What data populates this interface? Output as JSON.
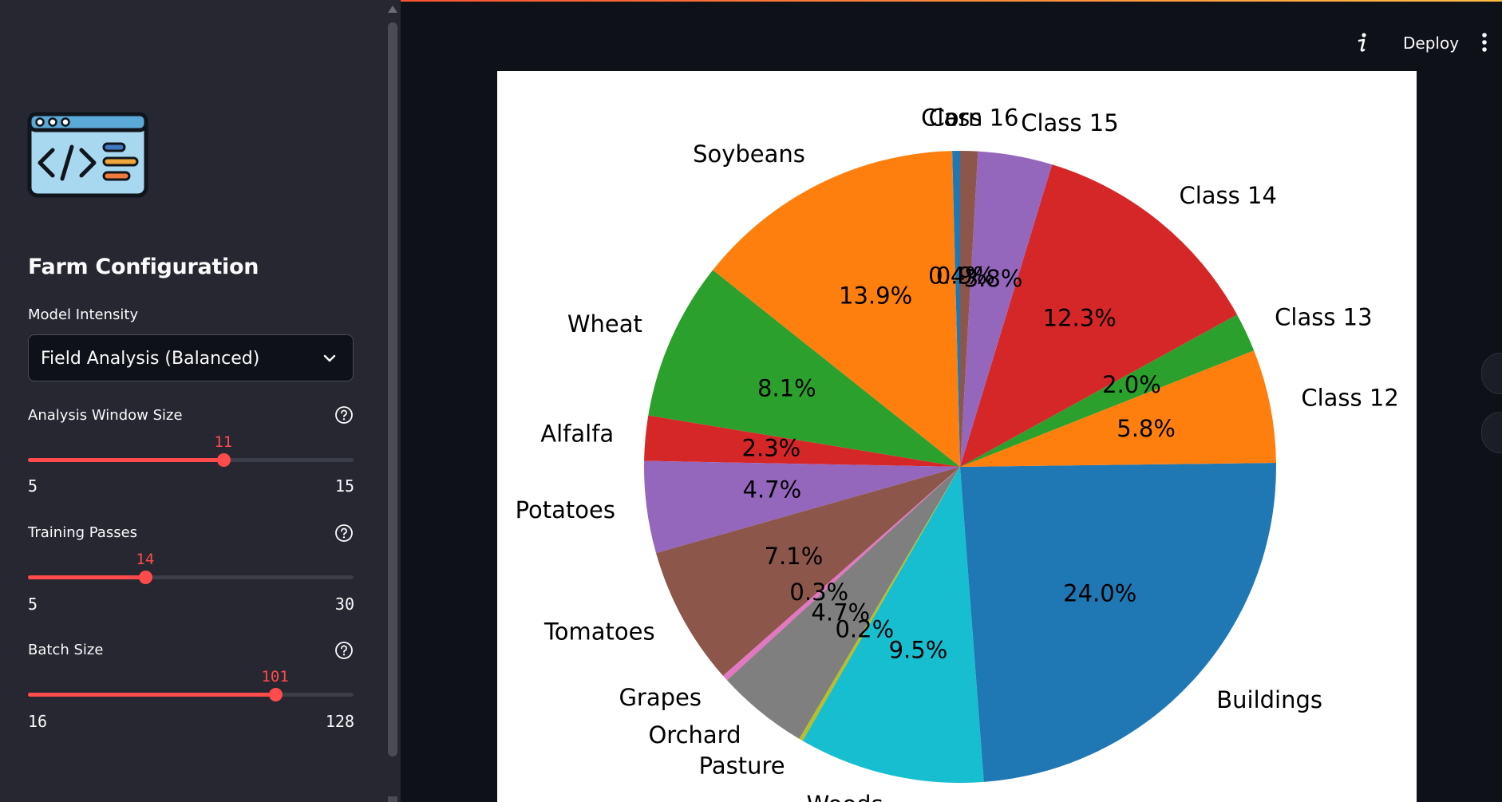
{
  "header": {
    "deploy_label": "Deploy",
    "info_icon": "info-icon",
    "menu_icon": "more-vertical-icon"
  },
  "sidebar": {
    "logo_icon": "code-window-icon",
    "title": "Farm Configuration",
    "model_intensity": {
      "label": "Model Intensity",
      "value": "Field Analysis (Balanced)"
    },
    "sliders": [
      {
        "label": "Analysis Window Size",
        "value": "11",
        "min": "5",
        "max": "15",
        "v": 11,
        "lo": 5,
        "hi": 15
      },
      {
        "label": "Training Passes",
        "value": "14",
        "min": "5",
        "max": "30",
        "v": 14,
        "lo": 5,
        "hi": 30
      },
      {
        "label": "Batch Size",
        "value": "101",
        "min": "16",
        "max": "128",
        "v": 101,
        "lo": 16,
        "hi": 128
      }
    ]
  },
  "colors": {
    "accent": "#ff4b4b",
    "sidebar_bg": "#262730",
    "main_bg": "#0e1117"
  },
  "chart_data": {
    "type": "pie",
    "start_angle_deg": 90,
    "direction": "counterclockwise",
    "slices": [
      {
        "label": "Corn",
        "value": 0.4,
        "pct_label": "0.4%",
        "color": "#1f77b4"
      },
      {
        "label": "Soybeans",
        "value": 13.9,
        "pct_label": "13.9%",
        "color": "#ff7f0e"
      },
      {
        "label": "Wheat",
        "value": 8.1,
        "pct_label": "8.1%",
        "color": "#2ca02c"
      },
      {
        "label": "Alfalfa",
        "value": 2.3,
        "pct_label": "2.3%",
        "color": "#d62728"
      },
      {
        "label": "Potatoes",
        "value": 4.7,
        "pct_label": "4.7%",
        "color": "#9467bd"
      },
      {
        "label": "Tomatoes",
        "value": 7.1,
        "pct_label": "7.1%",
        "color": "#8c564b"
      },
      {
        "label": "Grapes",
        "value": 0.3,
        "pct_label": "0.3%",
        "color": "#e377c2"
      },
      {
        "label": "Orchard",
        "value": 4.7,
        "pct_label": "4.7%",
        "color": "#7f7f7f"
      },
      {
        "label": "Pasture",
        "value": 0.2,
        "pct_label": "0.2%",
        "color": "#bcbd22"
      },
      {
        "label": "Woods",
        "value": 9.5,
        "pct_label": "9.5%",
        "color": "#17becf"
      },
      {
        "label": "Buildings",
        "value": 24.0,
        "pct_label": "24.0%",
        "color": "#1f77b4"
      },
      {
        "label": "Class 12",
        "value": 5.8,
        "pct_label": "5.8%",
        "color": "#ff7f0e"
      },
      {
        "label": "Class 13",
        "value": 2.0,
        "pct_label": "2.0%",
        "color": "#2ca02c"
      },
      {
        "label": "Class 14",
        "value": 12.3,
        "pct_label": "12.3%",
        "color": "#d62728"
      },
      {
        "label": "Class 15",
        "value": 3.8,
        "pct_label": "3.8%",
        "color": "#9467bd"
      },
      {
        "label": "Class 16",
        "value": 0.9,
        "pct_label": "0.9%",
        "color": "#8c564b"
      }
    ]
  }
}
